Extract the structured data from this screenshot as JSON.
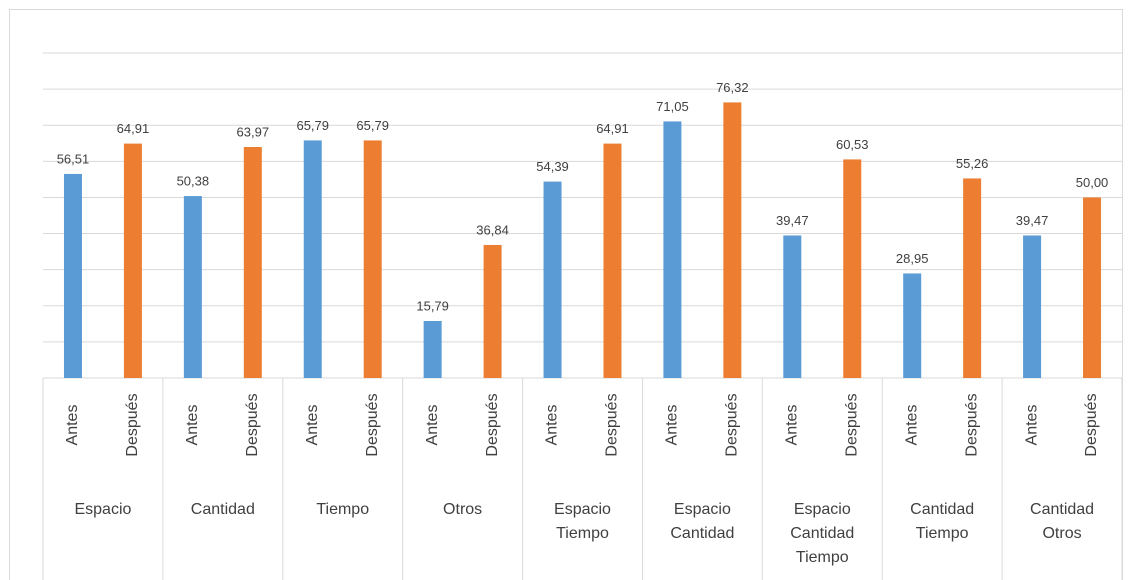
{
  "chart_data": {
    "type": "bar",
    "categories": [
      [
        "Espacio"
      ],
      [
        "Cantidad"
      ],
      [
        "Tiempo"
      ],
      [
        "Otros"
      ],
      [
        "Espacio",
        "Tiempo"
      ],
      [
        "Espacio",
        "Cantidad"
      ],
      [
        "Espacio",
        "Cantidad",
        "Tiempo"
      ],
      [
        "Cantidad",
        "Tiempo"
      ],
      [
        "Cantidad",
        "Otros"
      ]
    ],
    "series": [
      {
        "name": "Antes",
        "color": "#5b9bd5",
        "values": [
          56.51,
          50.38,
          65.79,
          15.79,
          54.39,
          71.05,
          39.47,
          28.95,
          39.47
        ],
        "value_labels": [
          "56,51",
          "50,38",
          "65,79",
          "15,79",
          "54,39",
          "71,05",
          "39,47",
          "28,95",
          "39,47"
        ]
      },
      {
        "name": "Después",
        "color": "#ed7d31",
        "values": [
          64.91,
          63.97,
          65.79,
          36.84,
          64.91,
          76.32,
          60.53,
          55.26,
          50.0
        ],
        "value_labels": [
          "64,91",
          "63,97",
          "65,79",
          "36,84",
          "64,91",
          "76,32",
          "60,53",
          "55,26",
          "50,00"
        ]
      }
    ],
    "ylim": [
      0,
      90
    ],
    "yticks": [
      0,
      10,
      20,
      30,
      40,
      50,
      60,
      70,
      80,
      90
    ],
    "grid": true
  }
}
